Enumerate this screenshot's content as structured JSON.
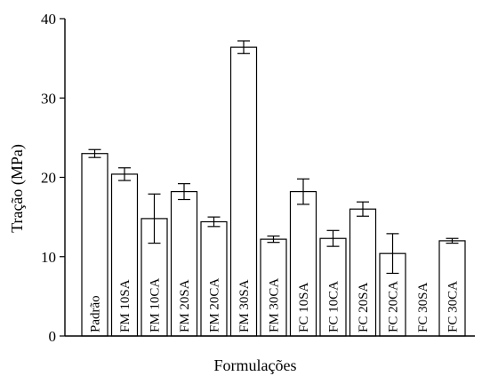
{
  "chart_data": {
    "type": "bar",
    "xlabel": "Formulações",
    "ylabel": "Tração (MPa)",
    "ylim": [
      0,
      40
    ],
    "yticks": [
      0,
      10,
      20,
      30,
      40
    ],
    "grid": false,
    "categories": [
      "Padrão",
      "FM 10SA",
      "FM 10CA",
      "FM 20SA",
      "FM 20CA",
      "FM 30SA",
      "FM 30CA",
      "FC 10SA",
      "FC 10CA",
      "FC 20SA",
      "FC 20CA",
      "FC 30SA",
      "FC 30CA"
    ],
    "values": [
      23.0,
      20.4,
      14.8,
      18.2,
      14.4,
      36.4,
      12.2,
      18.2,
      12.3,
      16.0,
      10.4,
      0,
      12.0
    ],
    "errors": [
      0.5,
      0.8,
      3.1,
      1.0,
      0.6,
      0.8,
      0.4,
      1.6,
      1.0,
      0.9,
      2.5,
      0,
      0.3
    ],
    "bar_color": "#ffffff",
    "edge_color": "#000000"
  }
}
